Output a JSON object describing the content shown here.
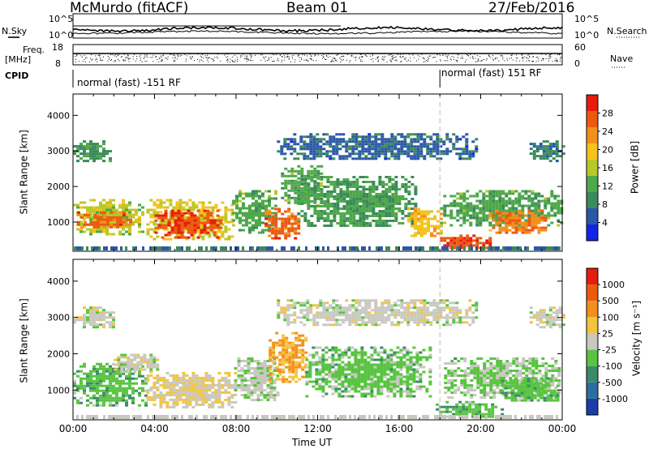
{
  "header": {
    "site": "McMurdo (fitACF)",
    "beam": "Beam 01",
    "date": "27/Feb/2016"
  },
  "status_panels": {
    "nsky_label": "N.Sky",
    "nsearch_label": "N.Search",
    "noise_ticks": [
      "10^5",
      "10^0"
    ],
    "freq_label": "Freq.",
    "freq_unit": "[MHz]",
    "freq_ticks": [
      "18",
      "8"
    ],
    "nave_label": "Nave",
    "nave_ticks": [
      "60",
      "0"
    ],
    "cpid_label": "CPID",
    "cpid_modes": [
      {
        "name": "normal (fast) -151 RF",
        "start_hour": 0
      },
      {
        "name": "normal (fast) 151 RF",
        "start_hour": 18.0
      }
    ]
  },
  "x_axis": {
    "label": "Time UT",
    "ticks": [
      "00:00",
      "04:00",
      "08:00",
      "12:00",
      "16:00",
      "20:00",
      "00:00"
    ],
    "range_hours": [
      0,
      24
    ]
  },
  "chart_data": [
    {
      "type": "heatmap",
      "name": "power",
      "ylabel": "Slant Range [km]",
      "yticks": [
        "1000",
        "2000",
        "3000",
        "4000"
      ],
      "ylim": [
        180,
        4600
      ],
      "colorbar": {
        "label": "Power [dB]",
        "ticks": [
          "4",
          "8",
          "12",
          "16",
          "20",
          "24",
          "28"
        ],
        "range": [
          0,
          32
        ],
        "colors": [
          "#1424e6",
          "#2a58a8",
          "#3b8a5c",
          "#4fa84a",
          "#b8c828",
          "#f6c21c",
          "#f2901c",
          "#ec5a10",
          "#e61c0c"
        ]
      },
      "echo_regions": [
        {
          "t0": 0.0,
          "t1": 3.4,
          "r0": 650,
          "r1": 1650,
          "value": 16
        },
        {
          "t0": 0.2,
          "t1": 2.8,
          "r0": 850,
          "r1": 1300,
          "value": 26
        },
        {
          "t0": 3.6,
          "t1": 7.8,
          "r0": 520,
          "r1": 1650,
          "value": 18
        },
        {
          "t0": 4.0,
          "t1": 7.2,
          "r0": 580,
          "r1": 1350,
          "value": 28
        },
        {
          "t0": 7.8,
          "t1": 10.0,
          "r0": 700,
          "r1": 1900,
          "value": 12
        },
        {
          "t0": 9.4,
          "t1": 11.0,
          "r0": 550,
          "r1": 1400,
          "value": 26
        },
        {
          "t0": 10.2,
          "t1": 12.2,
          "r0": 1500,
          "r1": 2600,
          "value": 12
        },
        {
          "t0": 11.0,
          "t1": 16.8,
          "r0": 900,
          "r1": 2300,
          "value": 11
        },
        {
          "t0": 16.4,
          "t1": 18.0,
          "r0": 600,
          "r1": 1400,
          "value": 20
        },
        {
          "t0": 18.0,
          "t1": 20.4,
          "r0": 250,
          "r1": 650,
          "value": 28
        },
        {
          "t0": 18.0,
          "t1": 23.9,
          "r0": 900,
          "r1": 1900,
          "value": 12
        },
        {
          "t0": 20.4,
          "t1": 23.2,
          "r0": 700,
          "r1": 1350,
          "value": 24
        },
        {
          "t0": 0.0,
          "t1": 1.8,
          "r0": 2750,
          "r1": 3300,
          "value": 10
        },
        {
          "t0": 10.0,
          "t1": 19.8,
          "r0": 2800,
          "r1": 3500,
          "value": 6
        },
        {
          "t0": 22.4,
          "t1": 24.0,
          "r0": 2750,
          "r1": 3300,
          "value": 8
        }
      ]
    },
    {
      "type": "heatmap",
      "name": "velocity",
      "ylabel": "Slant Range [km]",
      "yticks": [
        "1000",
        "2000",
        "3000",
        "4000"
      ],
      "ylim": [
        180,
        4600
      ],
      "colorbar": {
        "label": "Velocity [m s⁻¹]",
        "ticks": [
          "1000",
          "500",
          "100",
          "25",
          "-25",
          "-100",
          "-500",
          "-1000"
        ],
        "range": [
          -1200,
          1200
        ],
        "colors": [
          "#1c3ca8",
          "#2c6ea0",
          "#3a8a68",
          "#58c440",
          "#c8c8c0",
          "#f2c440",
          "#f2901c",
          "#ec5a10",
          "#e61c0c"
        ]
      },
      "echo_regions": [
        {
          "t0": 0.0,
          "t1": 3.6,
          "r0": 600,
          "r1": 1750,
          "value": -300
        },
        {
          "t0": 2.0,
          "t1": 4.2,
          "r0": 1500,
          "r1": 2000,
          "value": 10
        },
        {
          "t0": 3.6,
          "t1": 7.9,
          "r0": 500,
          "r1": 1500,
          "value": 150
        },
        {
          "t0": 7.9,
          "t1": 10.0,
          "r0": 700,
          "r1": 1900,
          "value": -80
        },
        {
          "t0": 9.6,
          "t1": 11.4,
          "r0": 1200,
          "r1": 2600,
          "value": 400
        },
        {
          "t0": 11.4,
          "t1": 17.6,
          "r0": 800,
          "r1": 2200,
          "value": -250
        },
        {
          "t0": 17.8,
          "t1": 21.0,
          "r0": 250,
          "r1": 700,
          "value": -300
        },
        {
          "t0": 18.2,
          "t1": 23.8,
          "r0": 800,
          "r1": 1900,
          "value": -150
        },
        {
          "t0": 21.0,
          "t1": 23.8,
          "r0": 700,
          "r1": 1350,
          "value": -300
        },
        {
          "t0": 0.0,
          "t1": 2.0,
          "r0": 2750,
          "r1": 3300,
          "value": 5
        },
        {
          "t0": 10.0,
          "t1": 19.8,
          "r0": 2800,
          "r1": 3500,
          "value": 8
        },
        {
          "t0": 22.4,
          "t1": 24.0,
          "r0": 2750,
          "r1": 3300,
          "value": 5
        }
      ]
    }
  ]
}
